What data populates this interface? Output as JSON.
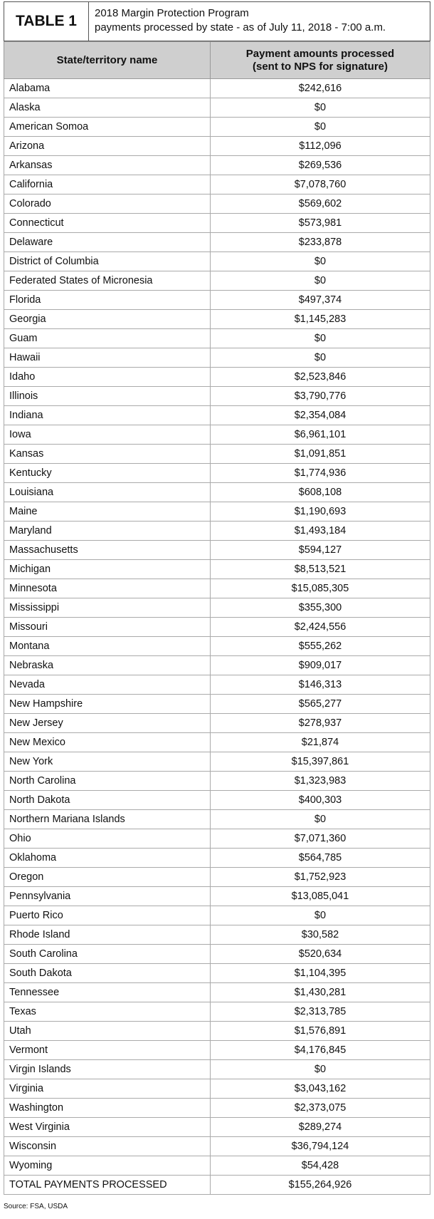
{
  "header": {
    "label": "TABLE 1",
    "title_lines": [
      "2018 Margin Protection Program",
      "payments processed by state - as of July 11, 2018 - 7:00 a.m."
    ]
  },
  "table": {
    "columns": [
      [
        "State/territory name"
      ],
      [
        "Payment amounts processed",
        "(sent to NPS for signature)"
      ]
    ],
    "rows": [
      [
        "Alabama",
        "$242,616"
      ],
      [
        "Alaska",
        "$0"
      ],
      [
        "American Somoa",
        "$0"
      ],
      [
        "Arizona",
        "$112,096"
      ],
      [
        "Arkansas",
        "$269,536"
      ],
      [
        "California",
        "$7,078,760"
      ],
      [
        "Colorado",
        "$569,602"
      ],
      [
        "Connecticut",
        "$573,981"
      ],
      [
        "Delaware",
        "$233,878"
      ],
      [
        "District of Columbia",
        "$0"
      ],
      [
        "Federated States of Micronesia",
        "$0"
      ],
      [
        "Florida",
        "$497,374"
      ],
      [
        "Georgia",
        "$1,145,283"
      ],
      [
        "Guam",
        "$0"
      ],
      [
        "Hawaii",
        "$0"
      ],
      [
        "Idaho",
        "$2,523,846"
      ],
      [
        "Illinois",
        "$3,790,776"
      ],
      [
        "Indiana",
        "$2,354,084"
      ],
      [
        "Iowa",
        "$6,961,101"
      ],
      [
        "Kansas",
        "$1,091,851"
      ],
      [
        "Kentucky",
        "$1,774,936"
      ],
      [
        "Louisiana",
        "$608,108"
      ],
      [
        "Maine",
        "$1,190,693"
      ],
      [
        "Maryland",
        "$1,493,184"
      ],
      [
        "Massachusetts",
        "$594,127"
      ],
      [
        "Michigan",
        "$8,513,521"
      ],
      [
        "Minnesota",
        "$15,085,305"
      ],
      [
        "Mississippi",
        "$355,300"
      ],
      [
        "Missouri",
        "$2,424,556"
      ],
      [
        "Montana",
        "$555,262"
      ],
      [
        "Nebraska",
        "$909,017"
      ],
      [
        "Nevada",
        "$146,313"
      ],
      [
        "New Hampshire",
        "$565,277"
      ],
      [
        "New Jersey",
        "$278,937"
      ],
      [
        "New Mexico",
        "$21,874"
      ],
      [
        "New York",
        "$15,397,861"
      ],
      [
        "North Carolina",
        "$1,323,983"
      ],
      [
        "North Dakota",
        "$400,303"
      ],
      [
        "Northern Mariana Islands",
        "$0"
      ],
      [
        "Ohio",
        "$7,071,360"
      ],
      [
        "Oklahoma",
        "$564,785"
      ],
      [
        "Oregon",
        "$1,752,923"
      ],
      [
        "Pennsylvania",
        "$13,085,041"
      ],
      [
        "Puerto Rico",
        "$0"
      ],
      [
        "Rhode Island",
        "$30,582"
      ],
      [
        "South Carolina",
        "$520,634"
      ],
      [
        "South Dakota",
        "$1,104,395"
      ],
      [
        "Tennessee",
        "$1,430,281"
      ],
      [
        "Texas",
        "$2,313,785"
      ],
      [
        "Utah",
        "$1,576,891"
      ],
      [
        "Vermont",
        "$4,176,845"
      ],
      [
        "Virgin Islands",
        "$0"
      ],
      [
        "Virginia",
        "$3,043,162"
      ],
      [
        "Washington",
        "$2,373,075"
      ],
      [
        "West Virginia",
        "$289,274"
      ],
      [
        "Wisconsin",
        "$36,794,124"
      ],
      [
        "Wyoming",
        "$54,428"
      ],
      [
        "TOTAL PAYMENTS PROCESSED",
        "$155,264,926"
      ]
    ]
  },
  "source": "Source: FSA, USDA"
}
